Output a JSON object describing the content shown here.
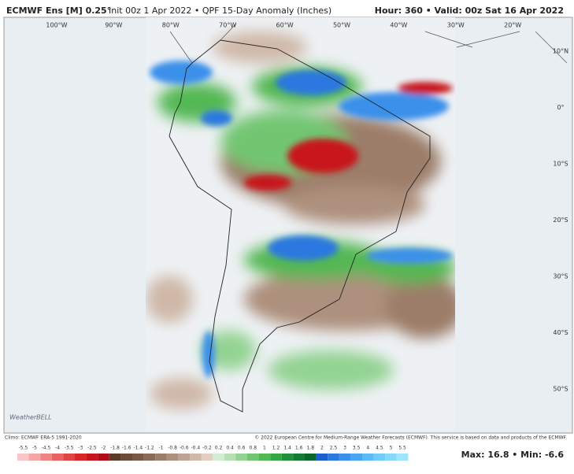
{
  "header": {
    "title": "ECMWF Ens [M] 0.25°",
    "subtitle": "Init 00z 1 Apr 2022 • QPF 15-Day Anomaly (Inches)",
    "valid": "Hour: 360 • Valid: 00z Sat 16 Apr 2022"
  },
  "map": {
    "lon_labels": [
      "100°W",
      "90°W",
      "80°W",
      "70°W",
      "60°W",
      "50°W",
      "40°W",
      "30°W",
      "20°W"
    ],
    "lat_labels": [
      "10°N",
      "0°",
      "10°S",
      "20°S",
      "30°S",
      "40°S",
      "50°S"
    ]
  },
  "footer": {
    "climo": "Climo: ECMWF ERA-5 1991-2020",
    "copyright": "© 2022 European Centre for Medium-Range Weather Forecasts (ECMWF). This service is based on data and products of the ECMWF.",
    "logo": "WeatherBELL",
    "stats": "Max: 16.8 • Min: -6.6"
  },
  "colorbar": {
    "labels": [
      "-5.5",
      "-5",
      "-4.5",
      "-4",
      "-3.5",
      "-3",
      "-2.5",
      "-2",
      "-1.8",
      "-1.6",
      "-1.4",
      "-1.2",
      "-1",
      "-0.8",
      "-0.6",
      "-0.4",
      "-0.2",
      "0.2",
      "0.4",
      "0.6",
      "0.8",
      "1",
      "1.2",
      "1.4",
      "1.6",
      "1.8",
      "2",
      "2.5",
      "3",
      "3.5",
      "4",
      "4.5",
      "5",
      "5.5"
    ],
    "colors": [
      "#f9c6c6",
      "#f4a6a6",
      "#ee8585",
      "#e86464",
      "#e04343",
      "#d82626",
      "#c8141e",
      "#b00c18",
      "#5b3a2a",
      "#6a4a38",
      "#7a5a47",
      "#8b6b57",
      "#9c7d69",
      "#ad907d",
      "#bea392",
      "#cfb8a8",
      "#e1cec1",
      "#d4ecd4",
      "#b4e0b4",
      "#93d393",
      "#72c672",
      "#52b852",
      "#36a645",
      "#228f3a",
      "#167a32",
      "#0c652b",
      "#1e5fd0",
      "#2a78e0",
      "#3a90ea",
      "#4aa6f0",
      "#5cbaf4",
      "#70cbf6",
      "#86d8f8",
      "#9ee4fa"
    ]
  }
}
